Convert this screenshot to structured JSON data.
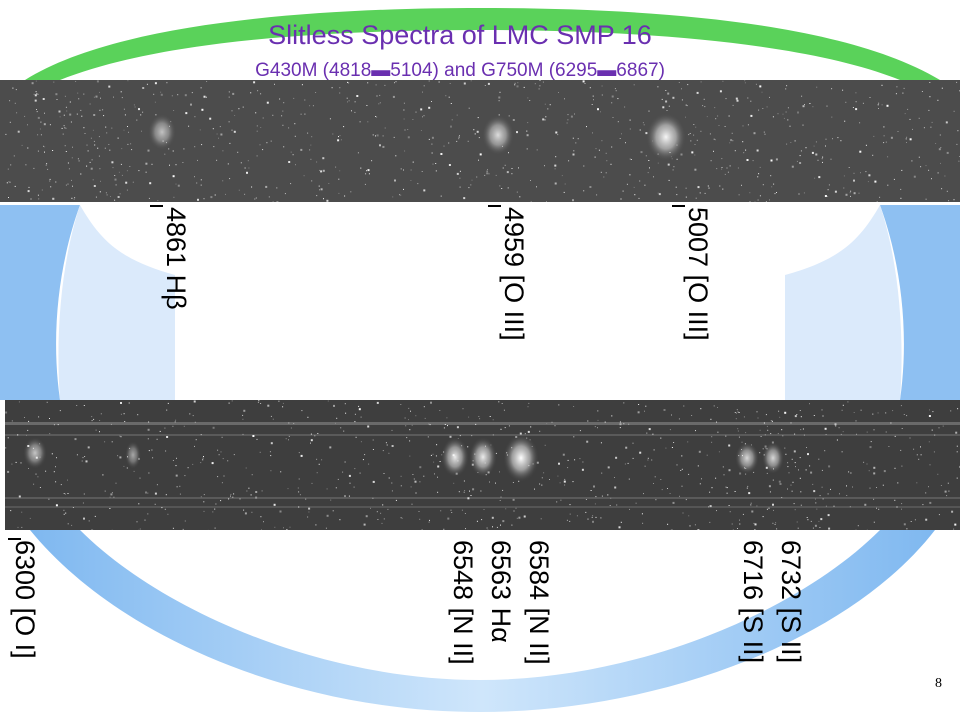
{
  "slide": {
    "title": "Slitless Spectra of LMC SMP 16",
    "subtitle": "G430M (4818▬5104)  and G750M (6295▬6867)",
    "page_number": "8"
  },
  "top_panel": {
    "labels": [
      "4861 Hβ",
      "4959 [O III]",
      "5007 [O III]"
    ]
  },
  "bottom_panel": {
    "labels": [
      "6300 [O I]",
      "6548 [N II]",
      "6563 Hα",
      "6584 [N II]",
      "6716 [S II]",
      "6732 [S II]"
    ]
  },
  "colors": {
    "title": "#6a2fb0",
    "ring_blue": "#8ec0f2",
    "ring_green": "#5ad25a",
    "background": "#ffffff"
  }
}
